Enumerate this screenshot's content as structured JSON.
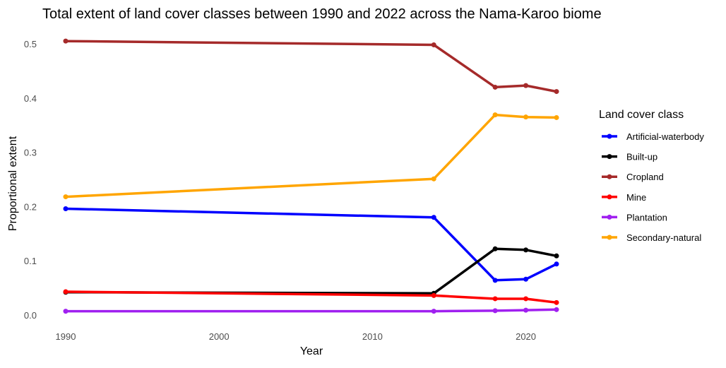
{
  "chart_data": {
    "type": "line",
    "title": "Total extent of land cover classes between 1990 and 2022 across the Nama-Karoo biome",
    "xlabel": "Year",
    "ylabel": "Proportional extent",
    "xlim": [
      1990,
      2022
    ],
    "ylim": [
      0,
      0.5
    ],
    "x_ticks": [
      1990,
      2000,
      2010,
      2020
    ],
    "y_ticks": [
      0.0,
      0.1,
      0.2,
      0.3,
      0.4,
      0.5
    ],
    "y_tick_labels": [
      "0.0",
      "0.1",
      "0.2",
      "0.3",
      "0.4",
      "0.5"
    ],
    "grid": false,
    "legend_title": "Land cover class",
    "legend_position": "right",
    "x": [
      1990,
      2014,
      2018,
      2020,
      2022
    ],
    "series": [
      {
        "name": "Artificial-waterbody",
        "color": "#0000ff",
        "values": [
          0.196,
          0.18,
          0.064,
          0.066,
          0.094
        ]
      },
      {
        "name": "Built-up",
        "color": "#000000",
        "values": [
          0.042,
          0.04,
          0.122,
          0.12,
          0.109
        ]
      },
      {
        "name": "Cropland",
        "color": "#a52a2a",
        "values": [
          0.505,
          0.498,
          0.42,
          0.423,
          0.412
        ]
      },
      {
        "name": "Mine",
        "color": "#ff0000",
        "values": [
          0.043,
          0.036,
          0.03,
          0.03,
          0.023
        ]
      },
      {
        "name": "Plantation",
        "color": "#a020f0",
        "values": [
          0.007,
          0.007,
          0.008,
          0.009,
          0.01
        ]
      },
      {
        "name": "Secondary-natural",
        "color": "#ffa500",
        "values": [
          0.218,
          0.251,
          0.369,
          0.365,
          0.364
        ]
      }
    ]
  }
}
